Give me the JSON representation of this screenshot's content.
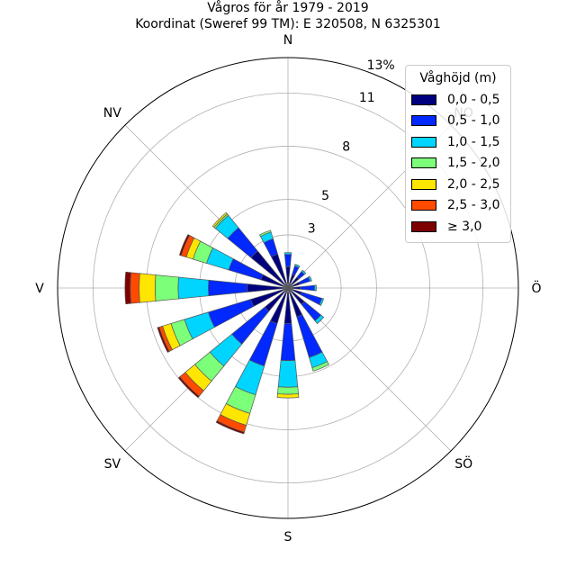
{
  "chart_data": {
    "type": "windrose",
    "title": "Vågros för år 1979 - 2019",
    "subtitle": "Koordinat (Sweref 99 TM): E 320508, N 6325301",
    "directions": [
      {
        "key": "N",
        "label": "N",
        "angle_deg": 0
      },
      {
        "key": "NO",
        "label": "NO",
        "angle_deg": 45
      },
      {
        "key": "O",
        "label": "Ö",
        "angle_deg": 90
      },
      {
        "key": "SO",
        "label": "SÖ",
        "angle_deg": 135
      },
      {
        "key": "S",
        "label": "S",
        "angle_deg": 180
      },
      {
        "key": "SV",
        "label": "SV",
        "angle_deg": 225
      },
      {
        "key": "V",
        "label": "V",
        "angle_deg": 270
      },
      {
        "key": "NV",
        "label": "NV",
        "angle_deg": 315
      }
    ],
    "radial_axis": {
      "unit": "%",
      "max": 13,
      "ticks": [
        {
          "value": 3,
          "label": "3"
        },
        {
          "value": 5,
          "label": "5"
        },
        {
          "value": 8,
          "label": "8"
        },
        {
          "value": 11,
          "label": "11"
        },
        {
          "value": 13,
          "label": "13%"
        }
      ]
    },
    "legend": {
      "title": "Våghöjd (m)",
      "placement": "top-right",
      "entries": [
        {
          "label": "0,0 - 0,5",
          "color": "#00007f"
        },
        {
          "label": "0,5 - 1,0",
          "color": "#0028ff"
        },
        {
          "label": "1,0 - 1,5",
          "color": "#00d5ff"
        },
        {
          "label": "1,5 - 2,0",
          "color": "#7cff79"
        },
        {
          "label": "2,0 - 2,5",
          "color": "#ffe600"
        },
        {
          "label": "2,5 - 3,0",
          "color": "#ff4a00"
        },
        {
          "label": "≥ 3,0",
          "color": "#7f0000"
        }
      ]
    },
    "sector_width_deg": 11.25,
    "bars": [
      {
        "direction_deg": 0,
        "cumulative": [
          1.2,
          1.9,
          2.0
        ]
      },
      {
        "direction_deg": 22.5,
        "cumulative": [
          0.8,
          1.3,
          1.4
        ]
      },
      {
        "direction_deg": 45,
        "cumulative": [
          0.8,
          1.2,
          1.3
        ]
      },
      {
        "direction_deg": 67.5,
        "cumulative": [
          0.7,
          1.3,
          1.4
        ]
      },
      {
        "direction_deg": 90,
        "cumulative": [
          0.7,
          1.5,
          1.6
        ]
      },
      {
        "direction_deg": 112.5,
        "cumulative": [
          0.8,
          2.0,
          2.1
        ]
      },
      {
        "direction_deg": 135,
        "cumulative": [
          1.2,
          2.4,
          2.6
        ]
      },
      {
        "direction_deg": 157.5,
        "cumulative": [
          1.7,
          4.1,
          4.7,
          4.9
        ]
      },
      {
        "direction_deg": 180,
        "cumulative": [
          2.0,
          4.1,
          5.6,
          6.0,
          6.2
        ]
      },
      {
        "direction_deg": 202.5,
        "cumulative": [
          2.1,
          4.6,
          6.3,
          7.4,
          8.1,
          8.5,
          8.6
        ]
      },
      {
        "direction_deg": 225,
        "cumulative": [
          1.7,
          4.1,
          5.7,
          6.8,
          7.5,
          7.9,
          8.0
        ]
      },
      {
        "direction_deg": 247.5,
        "cumulative": [
          2.2,
          4.7,
          6.1,
          6.9,
          7.4,
          7.6,
          7.7
        ]
      },
      {
        "direction_deg": 270,
        "cumulative": [
          2.3,
          4.5,
          6.2,
          7.5,
          8.4,
          8.9,
          9.2
        ]
      },
      {
        "direction_deg": 292.5,
        "cumulative": [
          1.6,
          3.5,
          4.8,
          5.6,
          6.0,
          6.3,
          6.4
        ]
      },
      {
        "direction_deg": 315,
        "cumulative": [
          2.7,
          4.4,
          5.3,
          5.4,
          5.5
        ]
      },
      {
        "direction_deg": 337.5,
        "cumulative": [
          2.0,
          2.9,
          3.3,
          3.4
        ]
      }
    ]
  }
}
